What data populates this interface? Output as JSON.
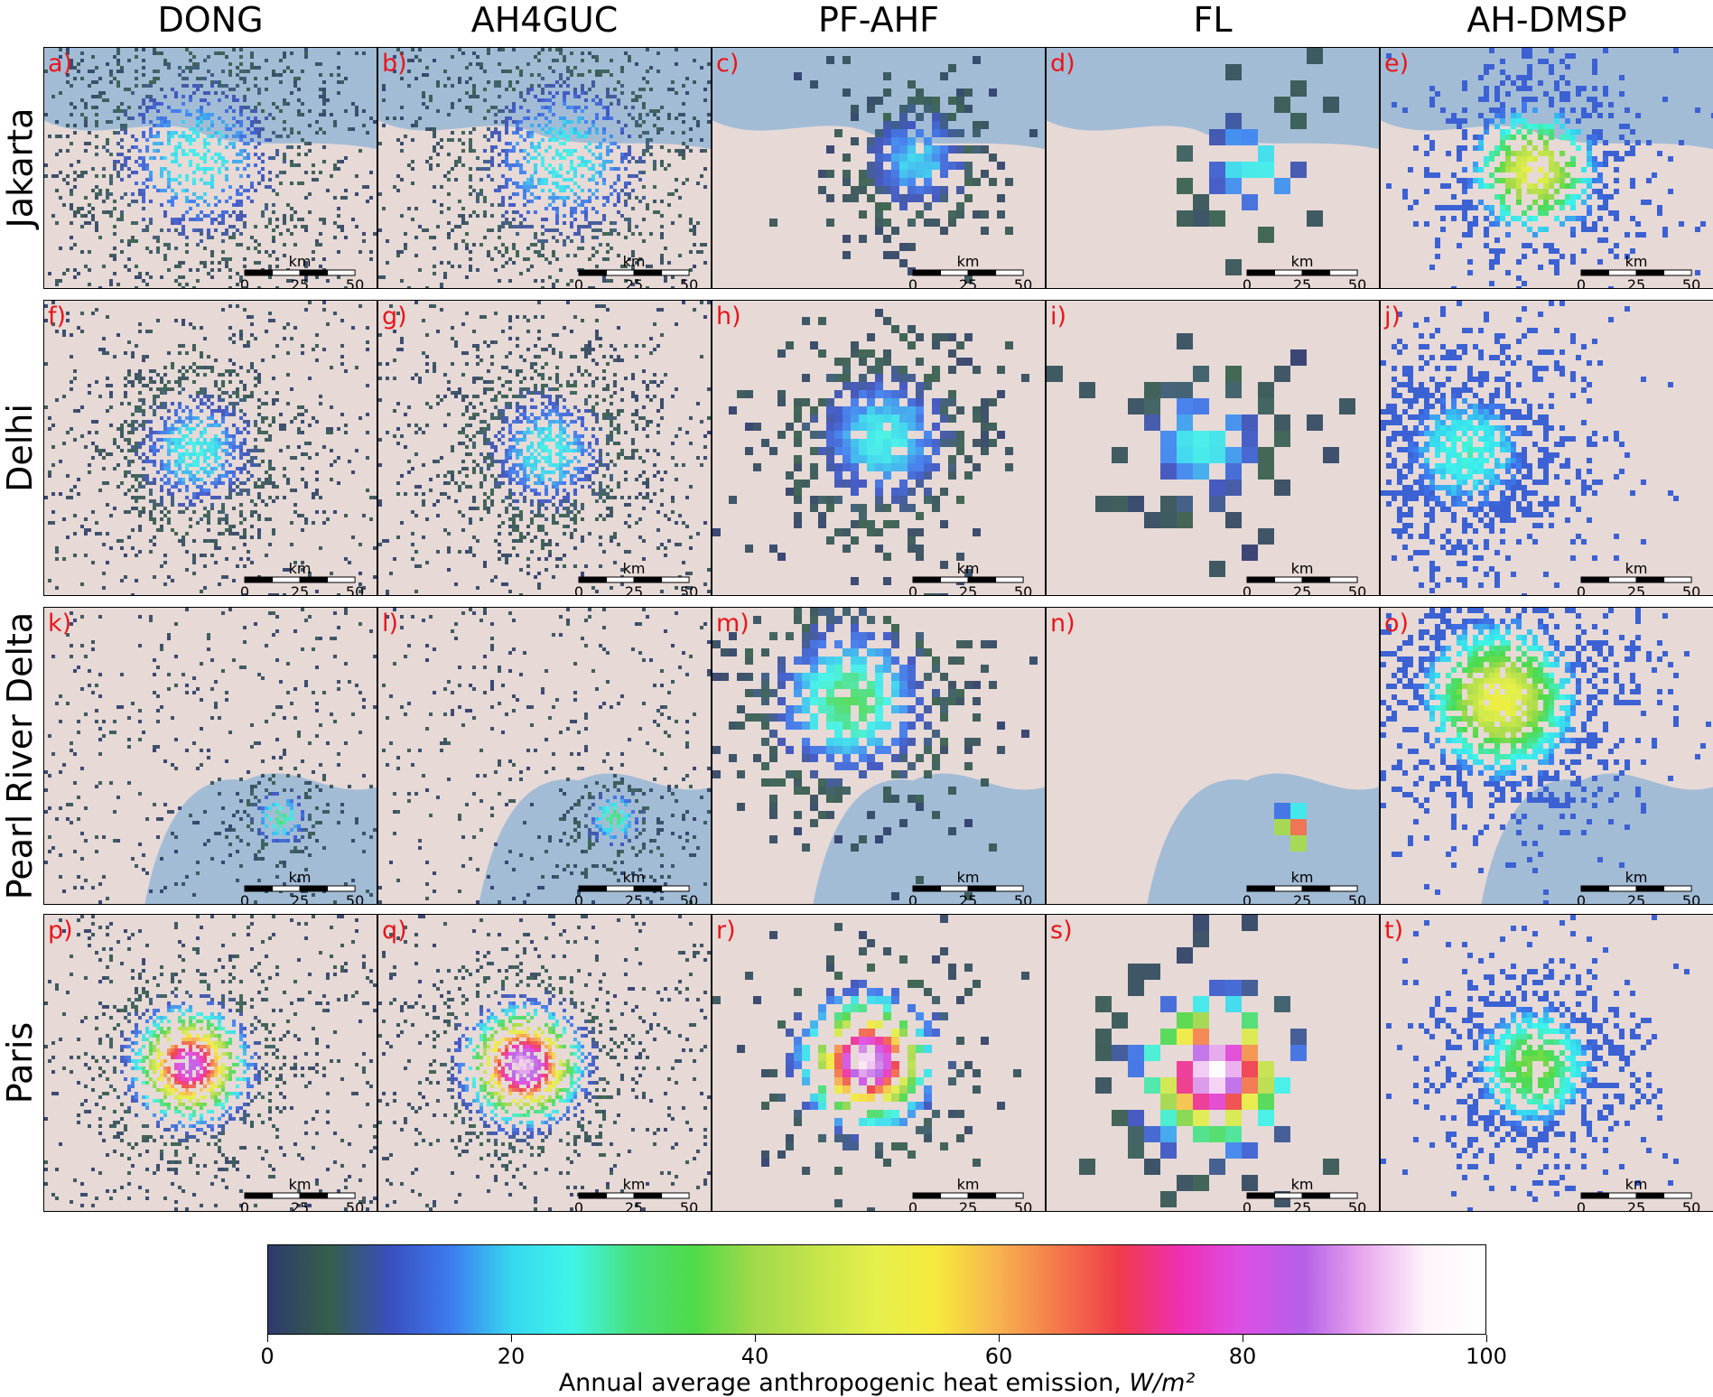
{
  "columns": [
    "DONG",
    "AH4GUC",
    "PF-AHF",
    "FL",
    "AH-DMSP"
  ],
  "rows": [
    "Jakarta",
    "Delhi",
    "Pearl River Delta",
    "Paris"
  ],
  "panels": [
    {
      "letter": "a)",
      "row": 0,
      "col": 0,
      "style": "fine",
      "base": "coast-north",
      "fill": 0.35,
      "center": [
        0.45,
        0.45
      ],
      "spread": 0.3,
      "peak": 22
    },
    {
      "letter": "b)",
      "row": 0,
      "col": 1,
      "style": "fine",
      "base": "coast-north",
      "fill": 0.35,
      "center": [
        0.55,
        0.45
      ],
      "spread": 0.3,
      "peak": 22
    },
    {
      "letter": "c)",
      "row": 0,
      "col": 2,
      "style": "blob",
      "base": "coast-north",
      "fill": 0.9,
      "center": [
        0.6,
        0.45
      ],
      "spread": 0.2,
      "peak": 18
    },
    {
      "letter": "d)",
      "row": 0,
      "col": 3,
      "style": "coarse",
      "base": "coast-north",
      "fill": 0.6,
      "center": [
        0.6,
        0.45
      ],
      "spread": 0.2,
      "peak": 22
    },
    {
      "letter": "e)",
      "row": 0,
      "col": 4,
      "style": "dmsp",
      "base": "coast-north",
      "fill": 0.7,
      "center": [
        0.45,
        0.5
      ],
      "spread": 0.25,
      "peak": 48
    },
    {
      "letter": "f)",
      "row": 1,
      "col": 0,
      "style": "fine",
      "base": "land",
      "fill": 0.55,
      "center": [
        0.45,
        0.5
      ],
      "spread": 0.22,
      "peak": 22
    },
    {
      "letter": "g)",
      "row": 1,
      "col": 1,
      "style": "fine",
      "base": "land",
      "fill": 0.55,
      "center": [
        0.5,
        0.5
      ],
      "spread": 0.22,
      "peak": 22
    },
    {
      "letter": "h)",
      "row": 1,
      "col": 2,
      "style": "blob",
      "base": "land",
      "fill": 0.9,
      "center": [
        0.5,
        0.45
      ],
      "spread": 0.25,
      "peak": 22
    },
    {
      "letter": "i)",
      "row": 1,
      "col": 3,
      "style": "coarse",
      "base": "land",
      "fill": 0.85,
      "center": [
        0.45,
        0.45
      ],
      "spread": 0.22,
      "peak": 22
    },
    {
      "letter": "j)",
      "row": 1,
      "col": 4,
      "style": "dmsp",
      "base": "land",
      "fill": 0.75,
      "center": [
        0.25,
        0.5
      ],
      "spread": 0.28,
      "peak": 24
    },
    {
      "letter": "k)",
      "row": 2,
      "col": 0,
      "style": "fine",
      "base": "bay",
      "fill": 0.45,
      "center": [
        0.7,
        0.7
      ],
      "spread": 0.1,
      "peak": 28
    },
    {
      "letter": "l)",
      "row": 2,
      "col": 1,
      "style": "fine",
      "base": "bay",
      "fill": 0.45,
      "center": [
        0.7,
        0.7
      ],
      "spread": 0.1,
      "peak": 28
    },
    {
      "letter": "m)",
      "row": 2,
      "col": 2,
      "style": "blob",
      "base": "bay",
      "fill": 0.85,
      "center": [
        0.4,
        0.3
      ],
      "spread": 0.28,
      "peak": 30
    },
    {
      "letter": "n)",
      "row": 2,
      "col": 3,
      "style": "coarse",
      "base": "bay",
      "fill": 0.8,
      "center": [
        0.72,
        0.72
      ],
      "spread": 0.08,
      "peak": 70
    },
    {
      "letter": "o)",
      "row": 2,
      "col": 4,
      "style": "dmsp",
      "base": "bay",
      "fill": 0.85,
      "center": [
        0.35,
        0.3
      ],
      "spread": 0.3,
      "peak": 50
    },
    {
      "letter": "p)",
      "row": 3,
      "col": 0,
      "style": "fine",
      "base": "land",
      "fill": 0.6,
      "center": [
        0.43,
        0.5
      ],
      "spread": 0.2,
      "peak": 82
    },
    {
      "letter": "q)",
      "row": 3,
      "col": 1,
      "style": "fine",
      "base": "land",
      "fill": 0.6,
      "center": [
        0.43,
        0.5
      ],
      "spread": 0.2,
      "peak": 90
    },
    {
      "letter": "r)",
      "row": 3,
      "col": 2,
      "style": "blob",
      "base": "land",
      "fill": 0.8,
      "center": [
        0.45,
        0.48
      ],
      "spread": 0.22,
      "peak": 92
    },
    {
      "letter": "s)",
      "row": 3,
      "col": 3,
      "style": "coarse",
      "base": "land",
      "fill": 0.95,
      "center": [
        0.48,
        0.5
      ],
      "spread": 0.25,
      "peak": 98
    },
    {
      "letter": "t)",
      "row": 3,
      "col": 4,
      "style": "dmsp",
      "base": "land",
      "fill": 0.7,
      "center": [
        0.45,
        0.5
      ],
      "spread": 0.25,
      "peak": 36
    }
  ],
  "scalebar": {
    "unit": "km",
    "ticks": [
      "0",
      "25",
      "50"
    ]
  },
  "colorbar": {
    "min": 0,
    "max": 100,
    "ticks": [
      "0",
      "20",
      "40",
      "60",
      "80",
      "100"
    ],
    "label": "Annual average anthropogenic heat emission, ",
    "unit": "W/m²"
  },
  "colors": {
    "land": "#e6d9d6",
    "water": "#a3bcd6",
    "letter": "#e8161b"
  }
}
